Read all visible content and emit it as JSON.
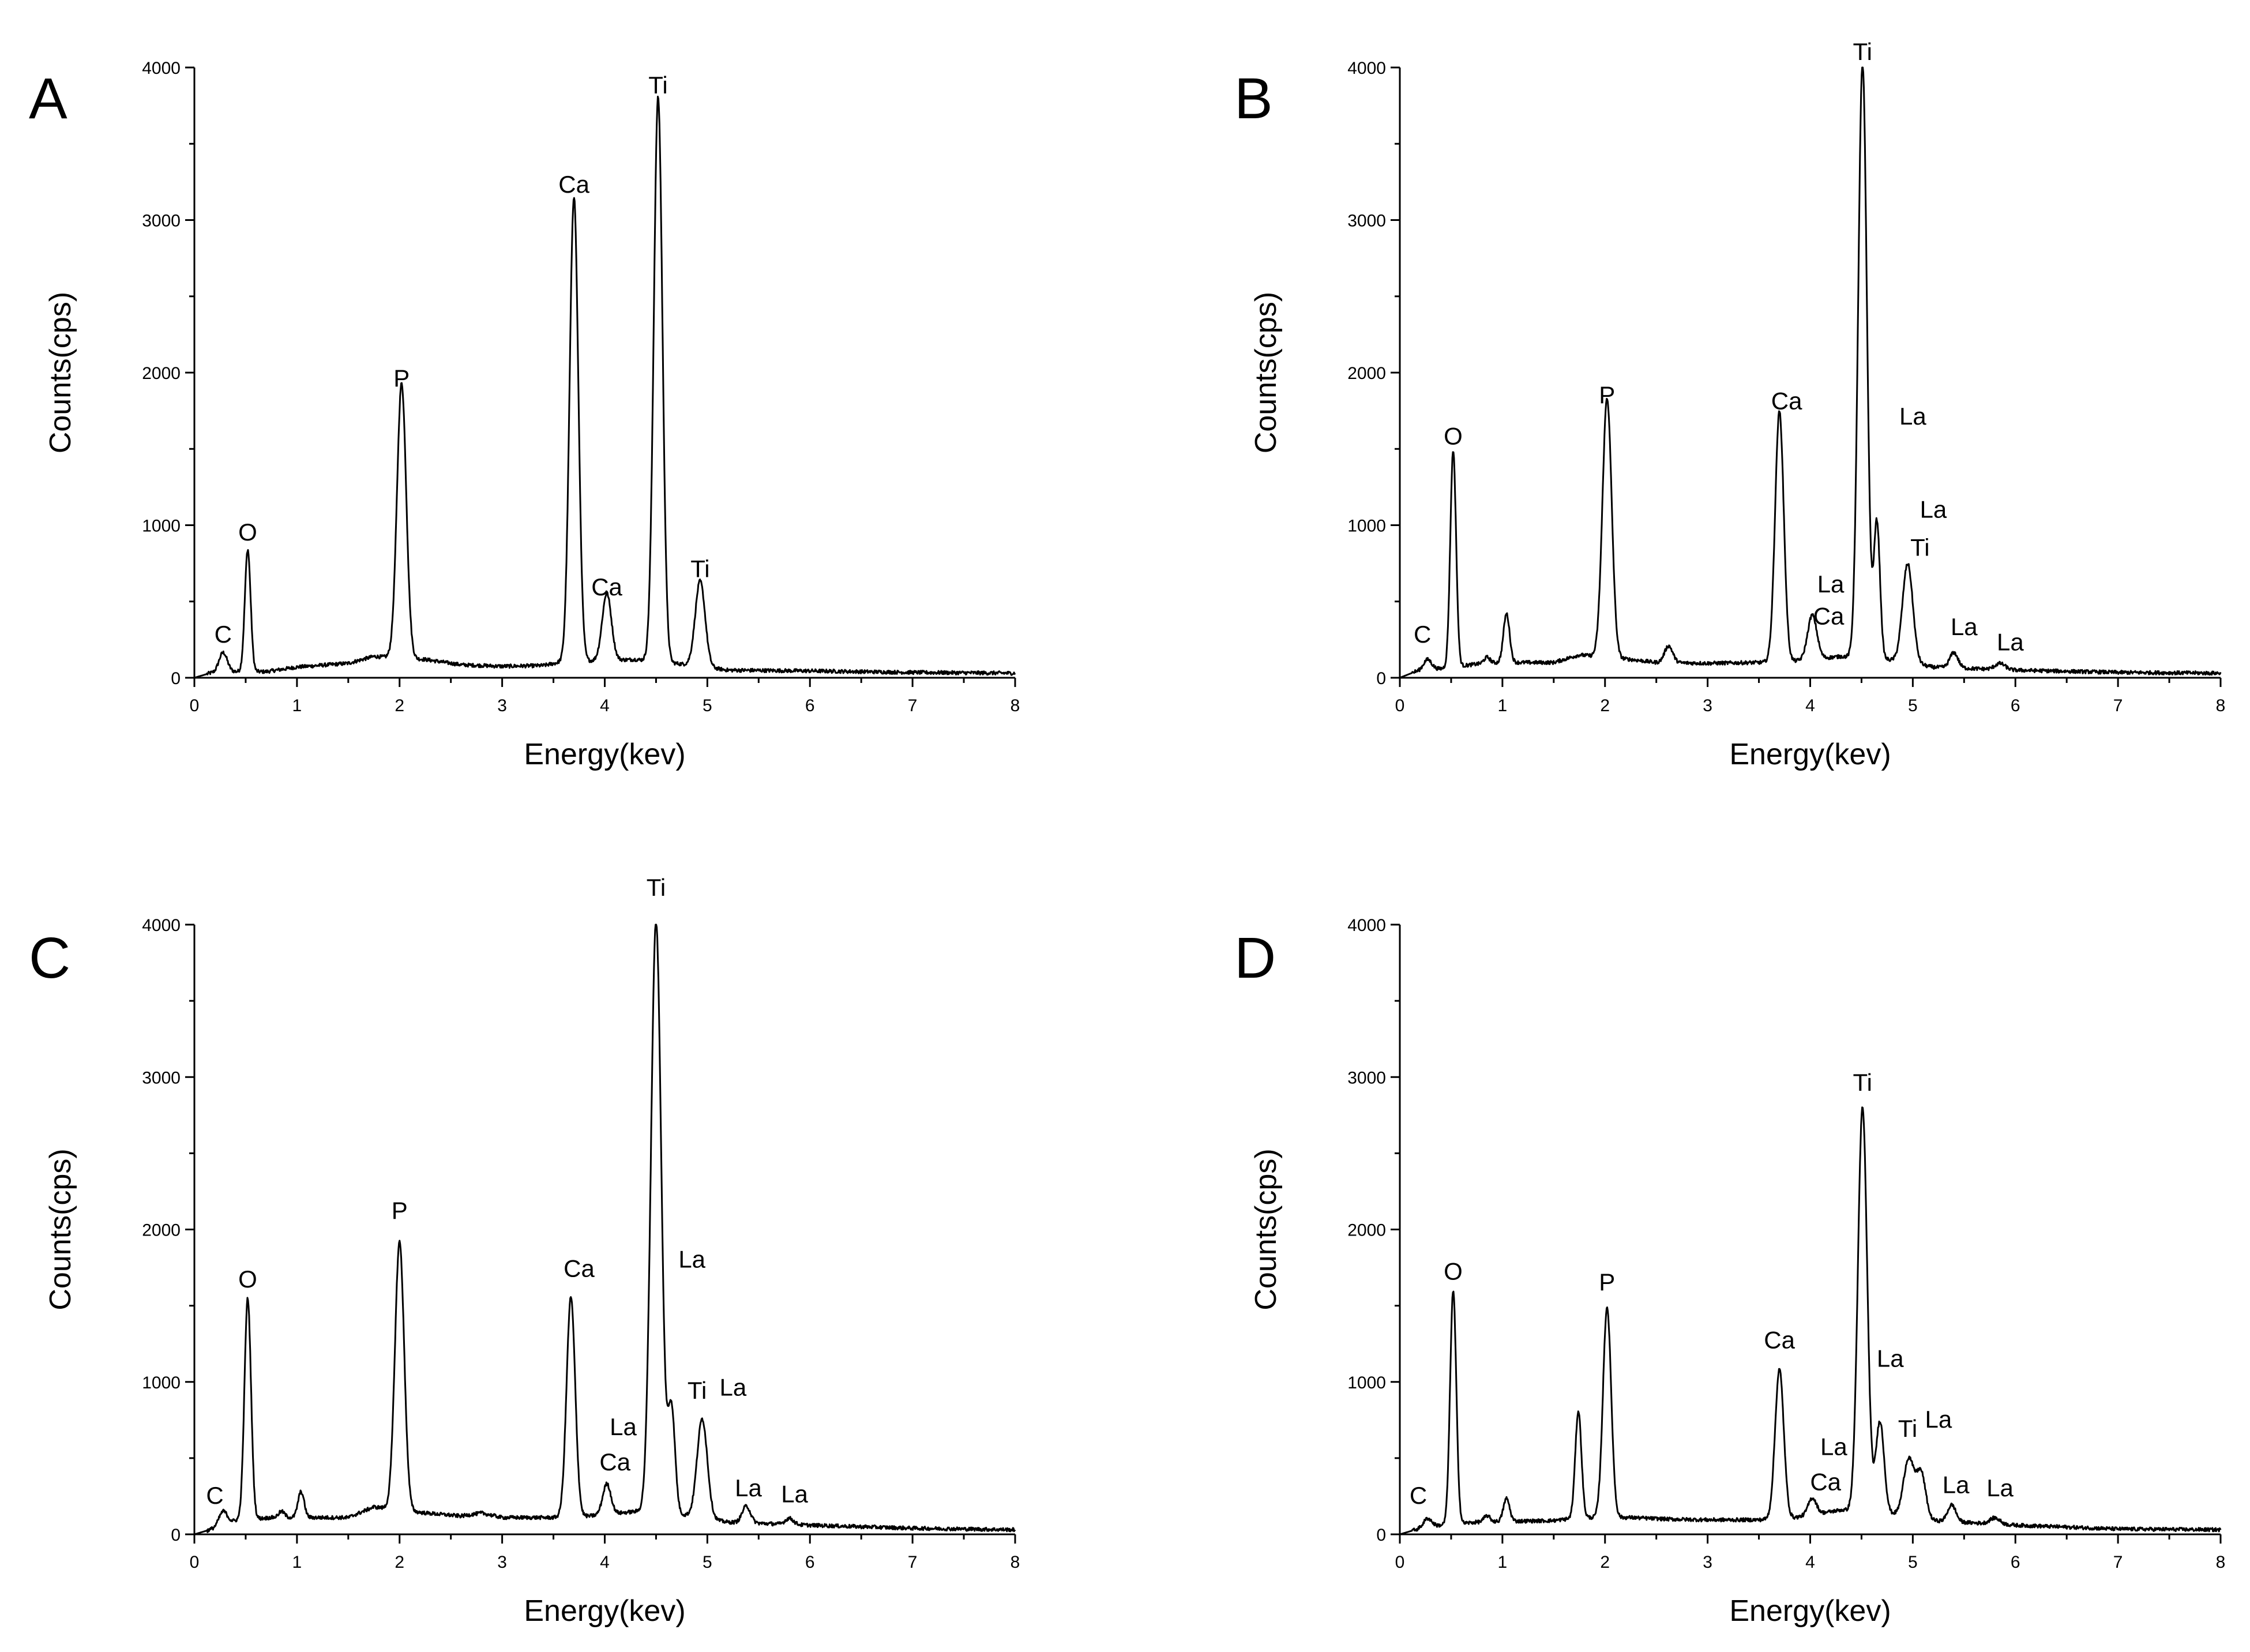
{
  "chart_data": [
    {
      "type": "line",
      "panel_label": "A",
      "xlabel": "Energy(kev)",
      "ylabel": "Counts(cps)",
      "xlim": [
        0,
        8
      ],
      "ylim": [
        0,
        4000
      ],
      "xticks": [
        0,
        1,
        2,
        3,
        4,
        5,
        6,
        7,
        8
      ],
      "yticks": [
        0,
        1000,
        2000,
        3000,
        4000
      ],
      "baseline": [
        [
          0.0,
          0
        ],
        [
          0.15,
          30
        ],
        [
          0.4,
          40
        ],
        [
          0.7,
          40
        ],
        [
          1.0,
          70
        ],
        [
          1.5,
          95
        ],
        [
          1.75,
          140
        ],
        [
          2.25,
          120
        ],
        [
          2.6,
          85
        ],
        [
          3.0,
          75
        ],
        [
          3.4,
          80
        ],
        [
          3.55,
          100
        ],
        [
          3.85,
          110
        ],
        [
          4.3,
          120
        ],
        [
          4.75,
          90
        ],
        [
          5.2,
          50
        ],
        [
          6.0,
          45
        ],
        [
          7.0,
          35
        ],
        [
          8.0,
          30
        ]
      ],
      "peaks": [
        {
          "x": 0.28,
          "y": 130,
          "w": 0.04
        },
        {
          "x": 0.52,
          "y": 800,
          "w": 0.028
        },
        {
          "x": 2.02,
          "y": 1800,
          "w": 0.045
        },
        {
          "x": 3.7,
          "y": 3050,
          "w": 0.042
        },
        {
          "x": 4.02,
          "y": 440,
          "w": 0.045
        },
        {
          "x": 4.52,
          "y": 3700,
          "w": 0.042
        },
        {
          "x": 4.93,
          "y": 560,
          "w": 0.048
        }
      ],
      "annotations": [
        {
          "text": "C",
          "x": 0.28,
          "y": 230
        },
        {
          "text": "O",
          "x": 0.52,
          "y": 900
        },
        {
          "text": "P",
          "x": 2.02,
          "y": 1910
        },
        {
          "text": "Ca",
          "x": 3.7,
          "y": 3180
        },
        {
          "text": "Ca",
          "x": 4.02,
          "y": 540
        },
        {
          "text": "Ti",
          "x": 4.52,
          "y": 3830
        },
        {
          "text": "Ti",
          "x": 4.93,
          "y": 660
        }
      ]
    },
    {
      "type": "line",
      "panel_label": "B",
      "xlabel": "Energy(kev)",
      "ylabel": "Counts(cps)",
      "xlim": [
        0,
        8
      ],
      "ylim": [
        0,
        4000
      ],
      "xticks": [
        0,
        1,
        2,
        3,
        4,
        5,
        6,
        7,
        8
      ],
      "yticks": [
        0,
        1000,
        2000,
        3000,
        4000
      ],
      "baseline": [
        [
          0.0,
          0
        ],
        [
          0.15,
          40
        ],
        [
          0.4,
          60
        ],
        [
          0.75,
          90
        ],
        [
          1.0,
          100
        ],
        [
          1.5,
          100
        ],
        [
          1.75,
          150
        ],
        [
          2.25,
          120
        ],
        [
          2.5,
          100
        ],
        [
          3.0,
          95
        ],
        [
          3.5,
          100
        ],
        [
          3.85,
          110
        ],
        [
          4.3,
          140
        ],
        [
          4.75,
          120
        ],
        [
          5.2,
          70
        ],
        [
          6.0,
          50
        ],
        [
          7.0,
          35
        ],
        [
          8.0,
          30
        ]
      ],
      "peaks": [
        {
          "x": 0.27,
          "y": 70,
          "w": 0.04
        },
        {
          "x": 0.52,
          "y": 1420,
          "w": 0.028
        },
        {
          "x": 0.85,
          "y": 40,
          "w": 0.03
        },
        {
          "x": 1.04,
          "y": 320,
          "w": 0.03
        },
        {
          "x": 2.02,
          "y": 1700,
          "w": 0.045
        },
        {
          "x": 2.62,
          "y": 110,
          "w": 0.04
        },
        {
          "x": 3.7,
          "y": 1640,
          "w": 0.042
        },
        {
          "x": 4.02,
          "y": 290,
          "w": 0.045
        },
        {
          "x": 4.51,
          "y": 3900,
          "w": 0.042
        },
        {
          "x": 4.65,
          "y": 900,
          "w": 0.03
        },
        {
          "x": 4.95,
          "y": 650,
          "w": 0.05
        },
        {
          "x": 5.4,
          "y": 100,
          "w": 0.04
        },
        {
          "x": 5.85,
          "y": 40,
          "w": 0.05
        }
      ],
      "annotations": [
        {
          "text": "C",
          "x": 0.22,
          "y": 230
        },
        {
          "text": "O",
          "x": 0.52,
          "y": 1530
        },
        {
          "text": "P",
          "x": 2.02,
          "y": 1800
        },
        {
          "text": "Ca",
          "x": 3.77,
          "y": 1760
        },
        {
          "text": "La",
          "x": 4.2,
          "y": 560
        },
        {
          "text": "Ca",
          "x": 4.18,
          "y": 350
        },
        {
          "text": "Ti",
          "x": 4.51,
          "y": 4050
        },
        {
          "text": "La",
          "x": 5.0,
          "y": 1660
        },
        {
          "text": "La",
          "x": 5.2,
          "y": 1050
        },
        {
          "text": "Ti",
          "x": 5.07,
          "y": 800
        },
        {
          "text": "La",
          "x": 5.5,
          "y": 280
        },
        {
          "text": "La",
          "x": 5.95,
          "y": 180
        }
      ]
    },
    {
      "type": "line",
      "panel_label": "C",
      "xlabel": "Energy(kev)",
      "ylabel": "Counts(cps)",
      "xlim": [
        0,
        8
      ],
      "ylim": [
        0,
        4000
      ],
      "xticks": [
        0,
        1,
        2,
        3,
        4,
        5,
        6,
        7,
        8
      ],
      "yticks": [
        0,
        1000,
        2000,
        3000,
        4000
      ],
      "baseline": [
        [
          0.0,
          0
        ],
        [
          0.15,
          30
        ],
        [
          0.4,
          90
        ],
        [
          0.75,
          110
        ],
        [
          1.0,
          110
        ],
        [
          1.5,
          110
        ],
        [
          1.75,
          180
        ],
        [
          2.25,
          140
        ],
        [
          2.6,
          120
        ],
        [
          2.8,
          140
        ],
        [
          3.0,
          110
        ],
        [
          3.5,
          110
        ],
        [
          3.85,
          120
        ],
        [
          4.3,
          150
        ],
        [
          4.75,
          130
        ],
        [
          5.2,
          80
        ],
        [
          6.0,
          60
        ],
        [
          7.0,
          40
        ],
        [
          8.0,
          30
        ]
      ],
      "peaks": [
        {
          "x": 0.28,
          "y": 90,
          "w": 0.04
        },
        {
          "x": 0.52,
          "y": 1450,
          "w": 0.032
        },
        {
          "x": 0.85,
          "y": 40,
          "w": 0.03
        },
        {
          "x": 1.04,
          "y": 170,
          "w": 0.03
        },
        {
          "x": 2.0,
          "y": 1760,
          "w": 0.045
        },
        {
          "x": 3.67,
          "y": 1440,
          "w": 0.042
        },
        {
          "x": 4.02,
          "y": 200,
          "w": 0.04
        },
        {
          "x": 4.5,
          "y": 3880,
          "w": 0.05
        },
        {
          "x": 4.65,
          "y": 700,
          "w": 0.035
        },
        {
          "x": 4.95,
          "y": 650,
          "w": 0.05
        },
        {
          "x": 5.38,
          "y": 110,
          "w": 0.04
        },
        {
          "x": 5.8,
          "y": 40,
          "w": 0.04
        }
      ],
      "annotations": [
        {
          "text": "C",
          "x": 0.2,
          "y": 200
        },
        {
          "text": "O",
          "x": 0.52,
          "y": 1620
        },
        {
          "text": "P",
          "x": 2.0,
          "y": 2070
        },
        {
          "text": "Ca",
          "x": 3.75,
          "y": 1690
        },
        {
          "text": "La",
          "x": 4.18,
          "y": 650
        },
        {
          "text": "Ca",
          "x": 4.1,
          "y": 420
        },
        {
          "text": "Ti",
          "x": 4.5,
          "y": 4190
        },
        {
          "text": "La",
          "x": 4.85,
          "y": 1750
        },
        {
          "text": "Ti",
          "x": 4.9,
          "y": 890
        },
        {
          "text": "La",
          "x": 5.25,
          "y": 910
        },
        {
          "text": "La",
          "x": 5.4,
          "y": 250
        },
        {
          "text": "La",
          "x": 5.85,
          "y": 210
        }
      ]
    },
    {
      "type": "line",
      "panel_label": "D",
      "xlabel": "Energy(kev)",
      "ylabel": "Counts(cps)",
      "xlim": [
        0,
        8
      ],
      "ylim": [
        0,
        4000
      ],
      "xticks": [
        0,
        1,
        2,
        3,
        4,
        5,
        6,
        7,
        8
      ],
      "yticks": [
        0,
        1000,
        2000,
        3000,
        4000
      ],
      "baseline": [
        [
          0.0,
          0
        ],
        [
          0.15,
          30
        ],
        [
          0.4,
          60
        ],
        [
          0.75,
          80
        ],
        [
          1.0,
          85
        ],
        [
          1.5,
          90
        ],
        [
          1.75,
          110
        ],
        [
          2.25,
          110
        ],
        [
          2.6,
          100
        ],
        [
          3.0,
          95
        ],
        [
          3.5,
          95
        ],
        [
          3.85,
          110
        ],
        [
          4.3,
          160
        ],
        [
          4.75,
          140
        ],
        [
          5.2,
          90
        ],
        [
          6.0,
          60
        ],
        [
          7.0,
          35
        ],
        [
          8.0,
          30
        ]
      ],
      "peaks": [
        {
          "x": 0.27,
          "y": 60,
          "w": 0.04
        },
        {
          "x": 0.52,
          "y": 1530,
          "w": 0.03
        },
        {
          "x": 0.85,
          "y": 40,
          "w": 0.03
        },
        {
          "x": 1.04,
          "y": 150,
          "w": 0.03
        },
        {
          "x": 1.74,
          "y": 700,
          "w": 0.03
        },
        {
          "x": 2.02,
          "y": 1380,
          "w": 0.04
        },
        {
          "x": 3.7,
          "y": 980,
          "w": 0.042
        },
        {
          "x": 4.02,
          "y": 110,
          "w": 0.04
        },
        {
          "x": 4.51,
          "y": 2650,
          "w": 0.045
        },
        {
          "x": 4.68,
          "y": 600,
          "w": 0.04
        },
        {
          "x": 4.96,
          "y": 380,
          "w": 0.05
        },
        {
          "x": 5.08,
          "y": 300,
          "w": 0.045
        },
        {
          "x": 5.38,
          "y": 110,
          "w": 0.04
        },
        {
          "x": 5.8,
          "y": 40,
          "w": 0.05
        }
      ],
      "annotations": [
        {
          "text": "C",
          "x": 0.18,
          "y": 200
        },
        {
          "text": "O",
          "x": 0.52,
          "y": 1670
        },
        {
          "text": "P",
          "x": 2.02,
          "y": 1600
        },
        {
          "text": "Ca",
          "x": 3.7,
          "y": 1220
        },
        {
          "text": "La",
          "x": 4.23,
          "y": 520
        },
        {
          "text": "Ca",
          "x": 4.15,
          "y": 290
        },
        {
          "text": "Ti",
          "x": 4.51,
          "y": 2910
        },
        {
          "text": "La",
          "x": 4.78,
          "y": 1100
        },
        {
          "text": "Ti",
          "x": 4.95,
          "y": 640
        },
        {
          "text": "La",
          "x": 5.25,
          "y": 700
        },
        {
          "text": "La",
          "x": 5.42,
          "y": 270
        },
        {
          "text": "La",
          "x": 5.85,
          "y": 250
        }
      ]
    }
  ]
}
